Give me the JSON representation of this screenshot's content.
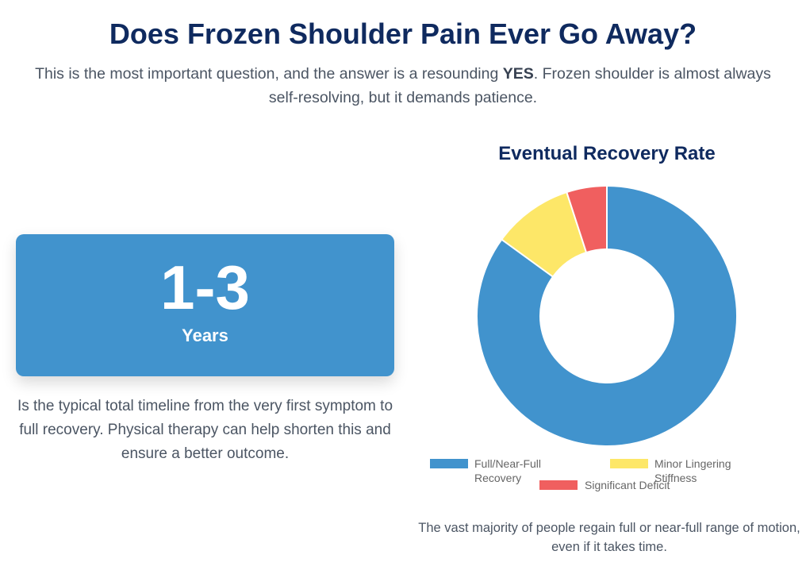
{
  "page": {
    "title": "Does Frozen Shoulder Pain Ever Go Away?",
    "intro_before": "This is the most important question, and the answer is a resounding ",
    "intro_bold": "YES",
    "intro_after": ". Frozen shoulder is almost always self-resolving, but it demands patience."
  },
  "stat": {
    "value": "1-3",
    "unit": "Years",
    "description": "Is the typical total timeline from the very first symptom to full recovery. Physical therapy can help shorten this and ensure a better outcome.",
    "color": "#4193cd"
  },
  "chart": {
    "note": "The vast majority of people regain full or near-full range of motion, even if it takes time."
  },
  "chart_data": {
    "type": "pie",
    "variant": "doughnut",
    "title": "Eventual Recovery Rate",
    "categories": [
      "Full/Near-Full Recovery",
      "Minor Lingering Stiffness",
      "Significant Deficit"
    ],
    "values": [
      85,
      10,
      5
    ],
    "colors": [
      "#4193cd",
      "#fde768",
      "#f05f5f"
    ],
    "legend_position": "bottom",
    "legend": [
      "Full/Near-Full Recovery",
      "Minor Lingering Stiffness",
      "Significant Deficit"
    ]
  }
}
